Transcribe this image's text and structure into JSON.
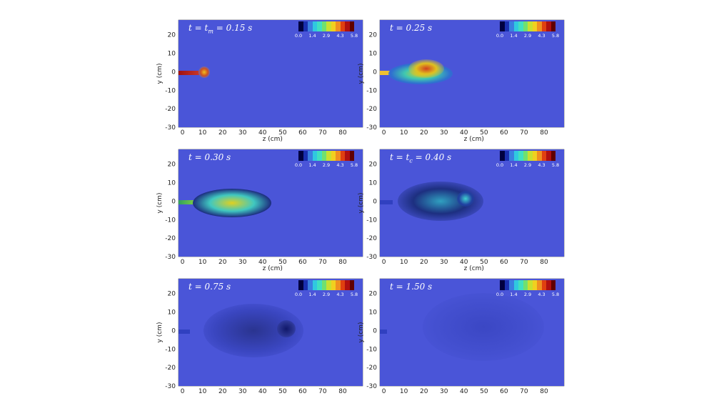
{
  "figure": {
    "axis_labels": {
      "x": "z (cm)",
      "y": "y (cm)"
    },
    "y_ticks": [
      "20",
      "10",
      "0",
      "-10",
      "-20",
      "-30"
    ],
    "x_ticks": [
      "0",
      "10",
      "20",
      "30",
      "40",
      "50",
      "60",
      "70",
      "80"
    ],
    "colorbar_ticks": [
      "0.0",
      "1.4",
      "2.9",
      "4.3",
      "5.8"
    ],
    "colors": {
      "background": "#4a55d8",
      "colorbar": [
        "#000040",
        "#1a2fb0",
        "#3a7fe0",
        "#30c8e0",
        "#40e0c0",
        "#70e070",
        "#c8e030",
        "#f0d020",
        "#f09020",
        "#e04010",
        "#b01010",
        "#600000"
      ]
    },
    "panels": [
      {
        "time_var": "t",
        "sub_var": "t",
        "subscript": "m",
        "eq_text": " = 0.15 s",
        "show_x_label": true
      },
      {
        "time_var": "t",
        "sub_var": "",
        "subscript": "",
        "eq_text": " = 0.25 s",
        "show_x_label": true
      },
      {
        "time_var": "t",
        "sub_var": "",
        "subscript": "",
        "eq_text": " = 0.30 s",
        "show_x_label": true
      },
      {
        "time_var": "t",
        "sub_var": "t",
        "subscript": "c",
        "eq_text": " = 0.40 s",
        "show_x_label": true
      },
      {
        "time_var": "t",
        "sub_var": "",
        "subscript": "",
        "eq_text": " = 0.75 s",
        "show_x_label": false
      },
      {
        "time_var": "t",
        "sub_var": "",
        "subscript": "",
        "eq_text": " = 1.50 s",
        "show_x_label": false
      }
    ]
  }
}
